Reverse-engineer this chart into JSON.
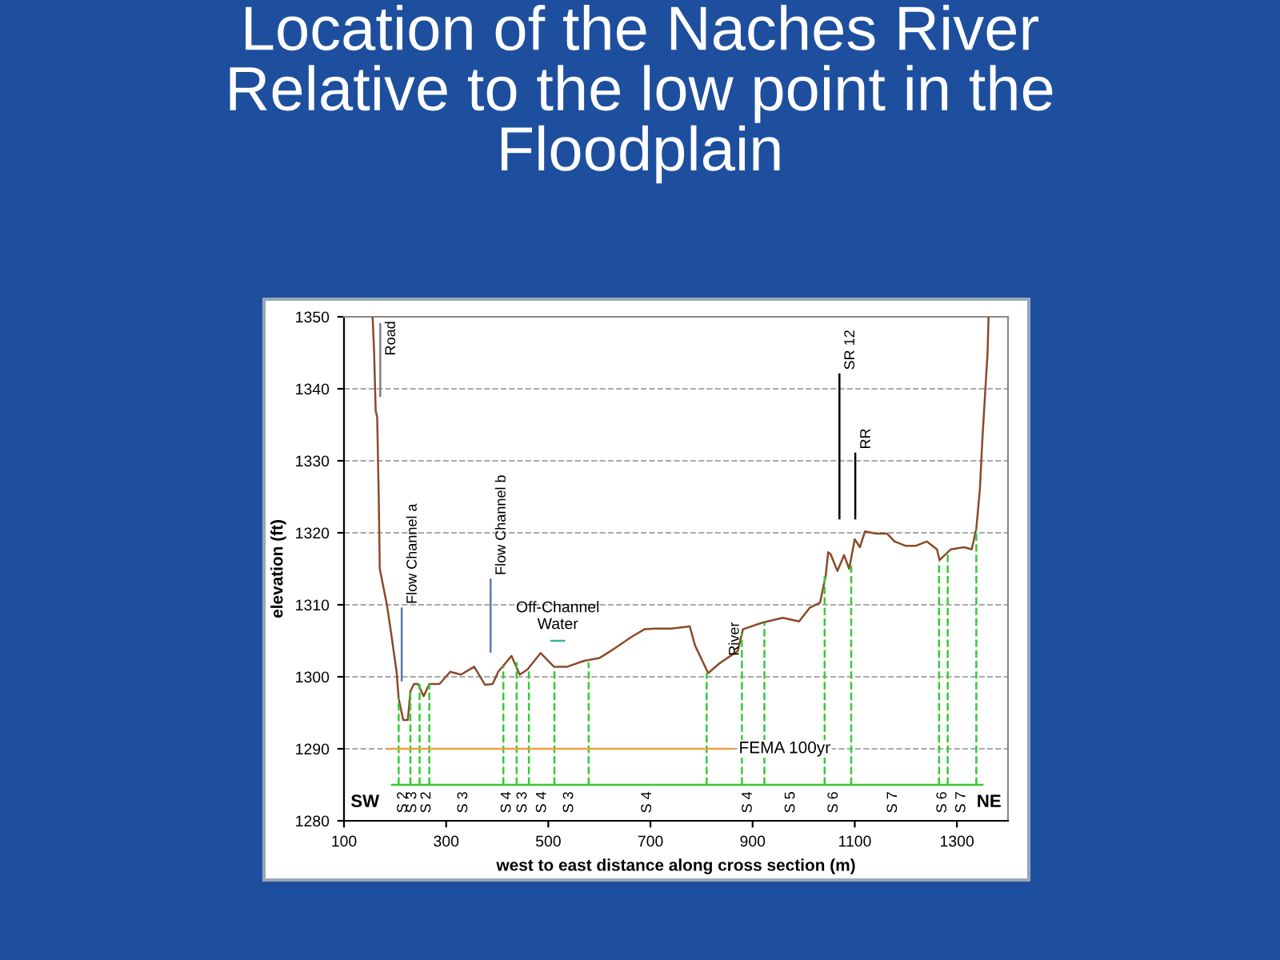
{
  "chart_data": {
    "type": "line",
    "title": "Location of the Naches River Relative to the low point in the Floodplain",
    "xlabel": "west to east distance along cross section (m)",
    "ylabel": "elevation (ft)",
    "xlim": [
      100,
      1400
    ],
    "ylim": [
      1280,
      1350
    ],
    "xticks": [
      100,
      300,
      500,
      700,
      900,
      1100,
      1300
    ],
    "yticks": [
      1280,
      1290,
      1300,
      1310,
      1320,
      1330,
      1340,
      1350
    ],
    "grid": "y",
    "legend": false,
    "series": [
      {
        "color": "#8b4a2b",
        "x": [
          156,
          159,
          162,
          165,
          168,
          170,
          184,
          191,
          203,
          207,
          216,
          225,
          230,
          237,
          245,
          256,
          267,
          287,
          308,
          329,
          355,
          376,
          391,
          402,
          428,
          444,
          459,
          485,
          511,
          537,
          569,
          600,
          631,
          662,
          688,
          709,
          741,
          777,
          787,
          813,
          834,
          871,
          881,
          918,
          959,
          991,
          1012,
          1032,
          1043,
          1048,
          1053,
          1066,
          1079,
          1089,
          1100,
          1110,
          1120,
          1141,
          1163,
          1178,
          1199,
          1220,
          1241,
          1261,
          1266,
          1288,
          1314,
          1329,
          1338,
          1345,
          1350,
          1360,
          1362
        ],
        "values": [
          1350,
          1345,
          1337,
          1336,
          1325,
          1315,
          1310,
          1306.7,
          1300.7,
          1297,
          1294,
          1294,
          1298,
          1299,
          1299,
          1297.3,
          1299,
          1299,
          1300.7,
          1300.3,
          1301.4,
          1298.9,
          1299,
          1300.7,
          1302.9,
          1300.3,
          1301,
          1303.3,
          1301.4,
          1301.4,
          1302.2,
          1302.6,
          1304,
          1305.5,
          1306.6,
          1306.7,
          1306.7,
          1307,
          1304.4,
          1300.5,
          1301.8,
          1303.6,
          1306.6,
          1307.5,
          1308.2,
          1307.7,
          1309.6,
          1310.3,
          1314,
          1317.3,
          1317,
          1314.7,
          1316.9,
          1315,
          1319.1,
          1318,
          1320.2,
          1319.9,
          1319.9,
          1318.8,
          1318.2,
          1318.2,
          1318.8,
          1317.7,
          1316.2,
          1317.7,
          1318,
          1317.7,
          1320.6,
          1326.1,
          1333.2,
          1345,
          1350
        ]
      },
      {
        "color": "#33cc33",
        "line_style": "dashed",
        "x": [
          207,
          207
        ],
        "values": [
          1285,
          1297
        ]
      },
      {
        "color": "#33cc33",
        "line_style": "dashed",
        "x": [
          230,
          230
        ],
        "values": [
          1285,
          1298
        ]
      },
      {
        "color": "#33cc33",
        "line_style": "dashed",
        "x": [
          248,
          248
        ],
        "values": [
          1285,
          1299
        ]
      },
      {
        "color": "#33cc33",
        "line_style": "dashed",
        "x": [
          267,
          267
        ],
        "values": [
          1285,
          1299
        ]
      },
      {
        "color": "#33cc33",
        "line_style": "dashed",
        "x": [
          412,
          412
        ],
        "values": [
          1285,
          1301.5
        ]
      },
      {
        "color": "#33cc33",
        "line_style": "dashed",
        "x": [
          438,
          438
        ],
        "values": [
          1285,
          1302
        ]
      },
      {
        "color": "#33cc33",
        "line_style": "dashed",
        "x": [
          462,
          462
        ],
        "values": [
          1285,
          1301
        ]
      },
      {
        "color": "#33cc33",
        "line_style": "dashed",
        "x": [
          512,
          512
        ],
        "values": [
          1285,
          1301.4
        ]
      },
      {
        "color": "#33cc33",
        "line_style": "dashed",
        "x": [
          579,
          579
        ],
        "values": [
          1285,
          1302
        ]
      },
      {
        "color": "#33cc33",
        "line_style": "dashed",
        "x": [
          810,
          810
        ],
        "values": [
          1285,
          1300.5
        ]
      },
      {
        "color": "#33cc33",
        "line_style": "dashed",
        "x": [
          879,
          879
        ],
        "values": [
          1285,
          1306
        ]
      },
      {
        "color": "#33cc33",
        "line_style": "dashed",
        "x": [
          923,
          923
        ],
        "values": [
          1285,
          1307.5
        ]
      },
      {
        "color": "#33cc33",
        "line_style": "dashed",
        "x": [
          1041,
          1041
        ],
        "values": [
          1285,
          1314
        ]
      },
      {
        "color": "#33cc33",
        "line_style": "dashed",
        "x": [
          1093,
          1093
        ],
        "values": [
          1285,
          1316
        ]
      },
      {
        "color": "#33cc33",
        "line_style": "dashed",
        "x": [
          1265,
          1265
        ],
        "values": [
          1285,
          1316
        ]
      },
      {
        "color": "#33cc33",
        "line_style": "dashed",
        "x": [
          1282,
          1282
        ],
        "values": [
          1285,
          1317.5
        ]
      },
      {
        "color": "#33cc33",
        "line_style": "dashed",
        "x": [
          1338,
          1338
        ],
        "values": [
          1285,
          1320.5
        ]
      },
      {
        "color": "#33cc33",
        "x": [
          194,
          1350
        ],
        "values": [
          1285,
          1285
        ]
      },
      {
        "name": "FEMA 100yr",
        "color": "#f0a040",
        "x": [
          186,
          860
        ],
        "values": [
          1290,
          1290
        ]
      },
      {
        "name": "Off-Channel\nWater",
        "color": "#40b0a0",
        "x": [
          506,
          531
        ],
        "values": [
          1305,
          1305
        ]
      },
      {
        "color": "#808080",
        "x": [
          171,
          171
        ],
        "values": [
          1339,
          1349
        ]
      },
      {
        "color": "#5a78b0",
        "x": [
          213,
          213
        ],
        "values": [
          1299.5,
          1309.5
        ]
      },
      {
        "color": "#5a78b0",
        "x": [
          387,
          387
        ],
        "values": [
          1303.5,
          1313.5
        ]
      },
      {
        "color": "#000000",
        "x": [
          1070,
          1070
        ],
        "values": [
          1322,
          1342
        ]
      },
      {
        "color": "#000000",
        "x": [
          1101,
          1101
        ],
        "values": [
          1322,
          1331
        ]
      }
    ],
    "annotations": [
      "SW",
      "NE",
      {
        "text": "Road",
        "x": 171,
        "y": 1344
      },
      {
        "text": "Flow Channel a",
        "x": 213,
        "y": 1309.5
      },
      {
        "text": "Flow Channel b",
        "x": 387,
        "y": 1313.5
      },
      {
        "text": "River",
        "x": 844,
        "y": 1302.3
      },
      {
        "text": "SR 12",
        "x": 1070,
        "y": 1342
      },
      {
        "text": "RR",
        "x": 1101,
        "y": 1331
      },
      {
        "text": "S 2",
        "x": 216,
        "y": 1285
      },
      {
        "text": "S 3",
        "x": 234,
        "y": 1285
      },
      {
        "text": "S 2",
        "x": 262,
        "y": 1285
      },
      {
        "text": "S 3",
        "x": 334,
        "y": 1285
      },
      {
        "text": "S 4",
        "x": 419,
        "y": 1285
      },
      {
        "text": "S 3",
        "x": 450,
        "y": 1285
      },
      {
        "text": "S 4",
        "x": 488,
        "y": 1285
      },
      {
        "text": "S 3",
        "x": 541,
        "y": 1285
      },
      {
        "text": "S 4",
        "x": 694,
        "y": 1285
      },
      {
        "text": "S 4",
        "x": 891,
        "y": 1285
      },
      {
        "text": "S 5",
        "x": 975,
        "y": 1285
      },
      {
        "text": "S 6",
        "x": 1059,
        "y": 1285
      },
      {
        "text": "S 7",
        "x": 1175,
        "y": 1285
      },
      {
        "text": "S 6",
        "x": 1272,
        "y": 1285
      },
      {
        "text": "S 7",
        "x": 1309,
        "y": 1285
      }
    ]
  }
}
